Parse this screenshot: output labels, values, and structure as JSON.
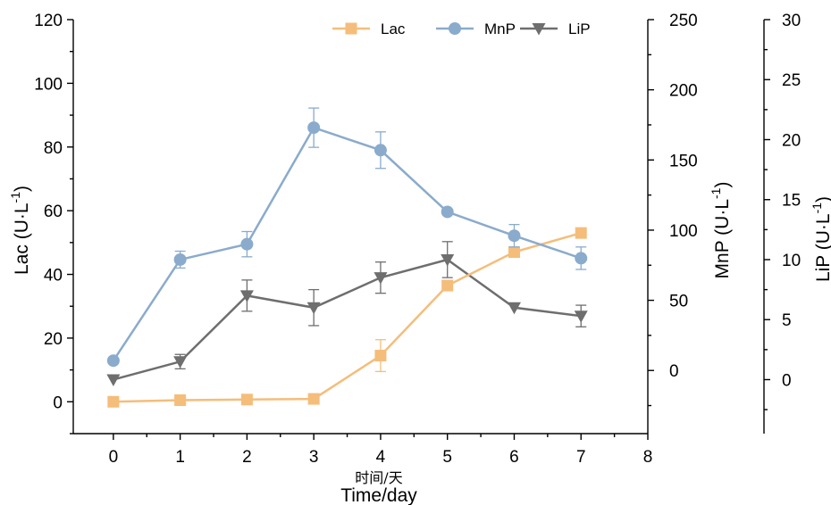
{
  "chart_data": {
    "type": "line",
    "x": [
      0,
      1,
      2,
      3,
      4,
      5,
      6,
      7
    ],
    "xlim": [
      -0.6,
      8
    ],
    "xticks": [
      0,
      1,
      2,
      3,
      4,
      5,
      6,
      7,
      8
    ],
    "xlabel_cn": "时间/天",
    "xlabel": "Time/day",
    "axes": {
      "left": {
        "label": "Lac (U·L",
        "label_sup": "-1",
        "label_close": ")",
        "min": -10,
        "max": 120,
        "ticks": [
          0,
          20,
          40,
          60,
          80,
          100,
          120
        ]
      },
      "right1": {
        "label": "MnP (U·L",
        "label_sup": "-1",
        "label_close": ")",
        "min": -45,
        "max": 250,
        "ticks": [
          0,
          50,
          100,
          150,
          200,
          250
        ]
      },
      "right2": {
        "label": "LiP (U·L",
        "label_sup": "-1",
        "label_close": ")",
        "min": -4.5,
        "max": 30,
        "ticks": [
          0,
          5,
          10,
          15,
          20,
          25,
          30
        ]
      }
    },
    "series": [
      {
        "name": "Lac",
        "axis": "left",
        "marker": "square",
        "color": "#f5bd7a",
        "values": [
          0,
          0.5,
          0.7,
          0.9,
          14.5,
          36.5,
          47,
          53
        ],
        "errors": [
          0,
          0,
          0,
          0,
          5,
          0,
          0,
          0
        ]
      },
      {
        "name": "MnP",
        "axis": "right1",
        "marker": "circle",
        "color": "#8aabcc",
        "values": [
          7,
          79,
          90,
          173,
          157,
          113,
          96,
          80
        ],
        "errors": [
          0,
          6,
          9,
          14,
          13,
          0,
          8,
          8
        ]
      },
      {
        "name": "LiP",
        "axis": "right2",
        "marker": "triangle-down",
        "color": "#6e6e6e",
        "values": [
          0,
          1.5,
          7,
          6,
          8.5,
          10,
          6,
          5.3
        ],
        "errors": [
          0,
          0.6,
          1.3,
          1.5,
          1.3,
          1.5,
          0,
          0.9
        ]
      }
    ],
    "legend": {
      "placement": "top"
    },
    "grid": false
  }
}
